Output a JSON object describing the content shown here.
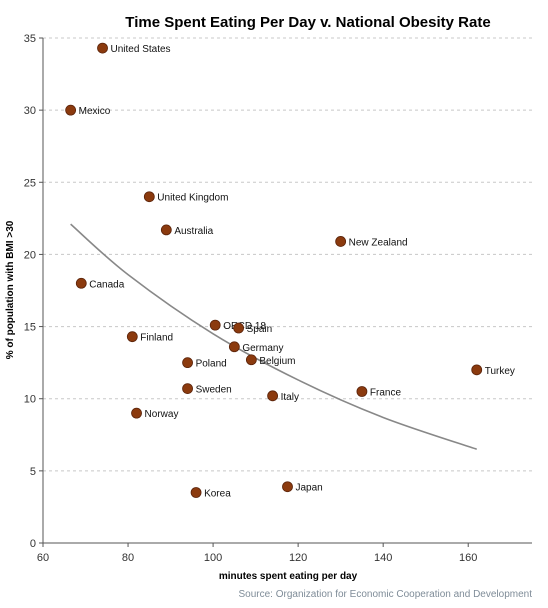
{
  "chart_data": {
    "type": "scatter",
    "title": "Time Spent Eating Per Day v. National Obesity Rate",
    "xlabel": "minutes spent eating per day",
    "ylabel": "% of population with BMI >30",
    "source": "Source: Organization for Economic Cooperation and Development",
    "xlim": [
      60,
      175
    ],
    "ylim": [
      0,
      35
    ],
    "xticks": [
      60,
      80,
      100,
      120,
      140,
      160
    ],
    "yticks": [
      0,
      5,
      10,
      15,
      20,
      25,
      30,
      35
    ],
    "grid": "horizontal dashed",
    "point_color": "#8b3a0e",
    "trend_color": "#888888",
    "points": [
      {
        "label": "United States",
        "x": 74,
        "y": 34.3
      },
      {
        "label": "Mexico",
        "x": 66.5,
        "y": 30.0
      },
      {
        "label": "United Kingdom",
        "x": 85,
        "y": 24.0
      },
      {
        "label": "Australia",
        "x": 89,
        "y": 21.7
      },
      {
        "label": "New Zealand",
        "x": 130,
        "y": 20.9
      },
      {
        "label": "Canada",
        "x": 69,
        "y": 18.0
      },
      {
        "label": "OECD 18",
        "x": 100.5,
        "y": 15.1
      },
      {
        "label": "Spain",
        "x": 106,
        "y": 14.9
      },
      {
        "label": "Finland",
        "x": 81,
        "y": 14.3
      },
      {
        "label": "Germany",
        "x": 105,
        "y": 13.6
      },
      {
        "label": "Belgium",
        "x": 109,
        "y": 12.7
      },
      {
        "label": "Poland",
        "x": 94,
        "y": 12.5
      },
      {
        "label": "Turkey",
        "x": 162,
        "y": 12.0
      },
      {
        "label": "Sweden",
        "x": 94,
        "y": 10.7
      },
      {
        "label": "France",
        "x": 135,
        "y": 10.5
      },
      {
        "label": "Italy",
        "x": 114,
        "y": 10.2
      },
      {
        "label": "Norway",
        "x": 82,
        "y": 9.0
      },
      {
        "label": "Japan",
        "x": 117.5,
        "y": 3.9
      },
      {
        "label": "Korea",
        "x": 96,
        "y": 3.5
      }
    ],
    "trendline": [
      {
        "x": 66.5,
        "y": 22.1
      },
      {
        "x": 80,
        "y": 18.6
      },
      {
        "x": 100,
        "y": 14.5
      },
      {
        "x": 120,
        "y": 11.3
      },
      {
        "x": 140,
        "y": 8.7
      },
      {
        "x": 162,
        "y": 6.5
      }
    ]
  }
}
